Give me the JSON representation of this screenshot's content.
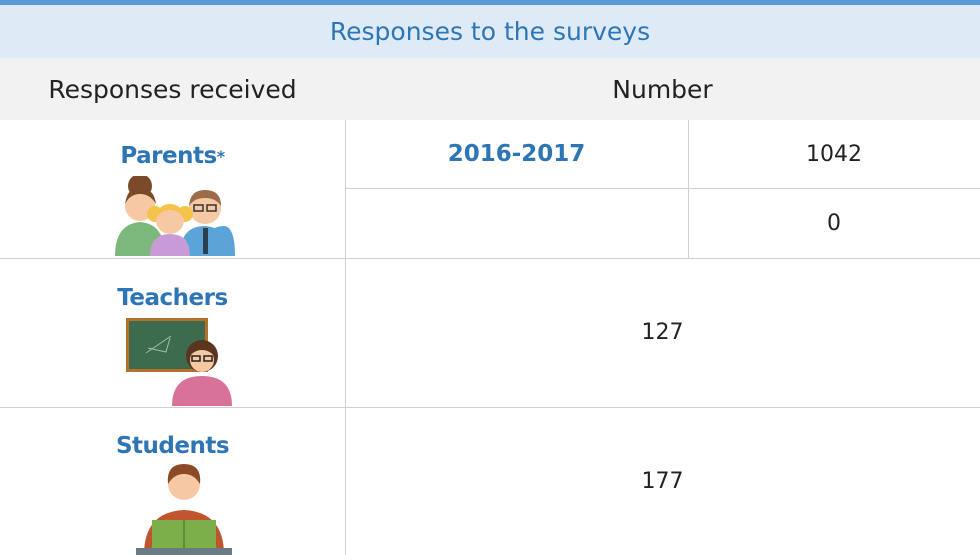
{
  "title": "Responses to the surveys",
  "header": [
    "Responses received",
    "Number"
  ],
  "rows": [
    {
      "group": "Parents",
      "marker": "*",
      "entries": [
        {
          "year": "2016-2017",
          "value": 1042
        },
        {
          "value": 0
        }
      ]
    },
    {
      "group": "Teachers",
      "value": 127
    },
    {
      "group": "Students",
      "value": 177
    }
  ]
}
